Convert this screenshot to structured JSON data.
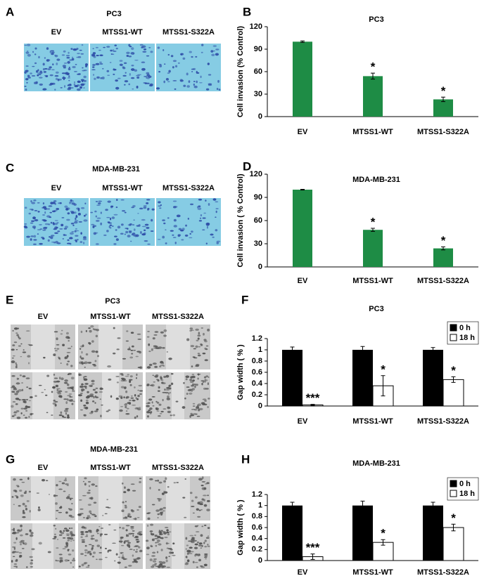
{
  "image_panels": [
    {
      "letter": "A",
      "title": "PC3",
      "labels": [
        "EV",
        "MTSS1-WT",
        "MTSS1-S322A"
      ]
    },
    {
      "letter": "C",
      "title": "MDA-MB-231",
      "labels": [
        "EV",
        "MTSS1-WT",
        "MTSS1-S322A"
      ]
    },
    {
      "letter": "E",
      "title": "PC3",
      "labels": [
        "EV",
        "MTSS1-WT",
        "MTSS1-S322A"
      ]
    },
    {
      "letter": "G",
      "title": "MDA-MB-231",
      "labels": [
        "EV",
        "MTSS1-WT",
        "MTSS1-S322A"
      ]
    }
  ],
  "chart_data": [
    {
      "type": "bar",
      "letter": "B",
      "title": "PC3",
      "y_label": "Cell invasion (% Control)",
      "categories": [
        "EV",
        "MTSS1-WT",
        "MTSS1-S322A"
      ],
      "series": [
        {
          "name": null,
          "color": "#1e8c45",
          "values": [
            100,
            54,
            23
          ],
          "errors": [
            1,
            4,
            3
          ],
          "annotations": [
            null,
            "*",
            "*"
          ]
        }
      ],
      "ylim": [
        0,
        120
      ],
      "yticks": [
        0,
        30,
        60,
        90,
        120
      ],
      "legend": false
    },
    {
      "type": "bar",
      "letter": "D",
      "title": "MDA-MB-231",
      "y_label": "Cell invasion ( % Control)",
      "categories": [
        "EV",
        "MTSS1-WT",
        "MTSS1-S322A"
      ],
      "series": [
        {
          "name": null,
          "color": "#1e8c45",
          "values": [
            100,
            48,
            24
          ],
          "errors": [
            0.5,
            2,
            2
          ],
          "annotations": [
            null,
            "*",
            "*"
          ]
        }
      ],
      "ylim": [
        0,
        120
      ],
      "yticks": [
        0,
        30,
        60,
        90,
        120
      ],
      "legend": false
    },
    {
      "type": "bar",
      "letter": "F",
      "title": "PC3",
      "y_label": "Gap width ( % )",
      "categories": [
        "EV",
        "MTSS1-WT",
        "MTSS1-S322A"
      ],
      "series": [
        {
          "name": "0 h",
          "color": "#000000",
          "values": [
            1,
            1,
            1
          ],
          "errors": [
            0.05,
            0.06,
            0.04
          ]
        },
        {
          "name": "18 h",
          "color": "#ffffff",
          "values": [
            0.02,
            0.36,
            0.47
          ],
          "errors": [
            0.01,
            0.18,
            0.05
          ],
          "annotations": [
            "***",
            "*",
            "*"
          ]
        }
      ],
      "ylim": [
        0,
        1.2
      ],
      "yticks": [
        0,
        0.2,
        0.4,
        0.6,
        0.8,
        1,
        1.2
      ],
      "legend": "upper right"
    },
    {
      "type": "bar",
      "letter": "H",
      "title": "MDA-MB-231",
      "y_label": "Gap width ( % )",
      "categories": [
        "EV",
        "MTSS1-WT",
        "MTSS1-S322A"
      ],
      "series": [
        {
          "name": "0 h",
          "color": "#000000",
          "values": [
            1,
            1,
            1
          ],
          "errors": [
            0.06,
            0.08,
            0.06
          ]
        },
        {
          "name": "18 h",
          "color": "#ffffff",
          "values": [
            0.07,
            0.33,
            0.6
          ],
          "errors": [
            0.05,
            0.05,
            0.06
          ],
          "annotations": [
            "***",
            "*",
            "*"
          ]
        }
      ],
      "ylim": [
        0,
        1.2
      ],
      "yticks": [
        0,
        0.2,
        0.4,
        0.6,
        0.8,
        1,
        1.2
      ],
      "legend": "upper right"
    }
  ]
}
